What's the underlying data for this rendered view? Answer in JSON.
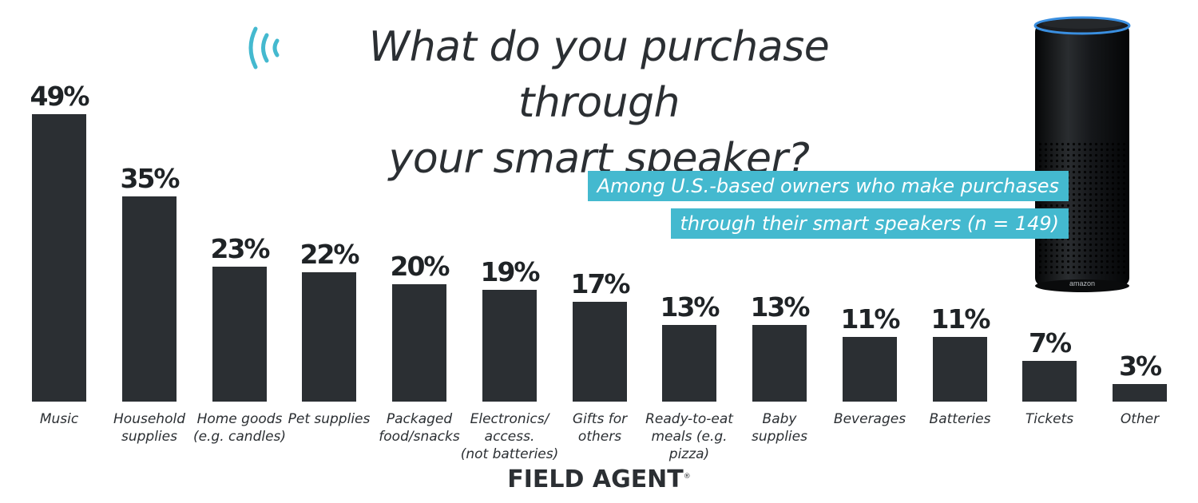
{
  "title_line1": "What do you purchase through",
  "title_line2": "your smart speaker?",
  "subtitle_line1": "Among U.S.-based owners who make purchases",
  "subtitle_line2": "through their smart speakers (n = 149)",
  "brand": "FIELD AGENT",
  "brand_mark": "®",
  "speaker_brand": "amazon",
  "colors": {
    "bar": "#2b2f33",
    "accent": "#44b9cf",
    "text": "#2b2f33"
  },
  "chart_data": {
    "type": "bar",
    "categories": [
      "Music",
      "Household\nsupplies",
      "Home goods\n(e.g. candles)",
      "Pet supplies",
      "Packaged\nfood/snacks",
      "Electronics/\naccess.\n(not batteries)",
      "Gifts for\nothers",
      "Ready-to-eat\nmeals (e.g. pizza)",
      "Baby\nsupplies",
      "Beverages",
      "Batteries",
      "Tickets",
      "Other"
    ],
    "values": [
      49,
      35,
      23,
      22,
      20,
      19,
      17,
      13,
      13,
      11,
      11,
      7,
      3
    ],
    "value_labels": [
      "49%",
      "35%",
      "23%",
      "22%",
      "20%",
      "19%",
      "17%",
      "13%",
      "13%",
      "11%",
      "11%",
      "7%",
      "3%"
    ],
    "ylim": [
      0,
      49
    ],
    "grid": false,
    "legend": "none"
  }
}
